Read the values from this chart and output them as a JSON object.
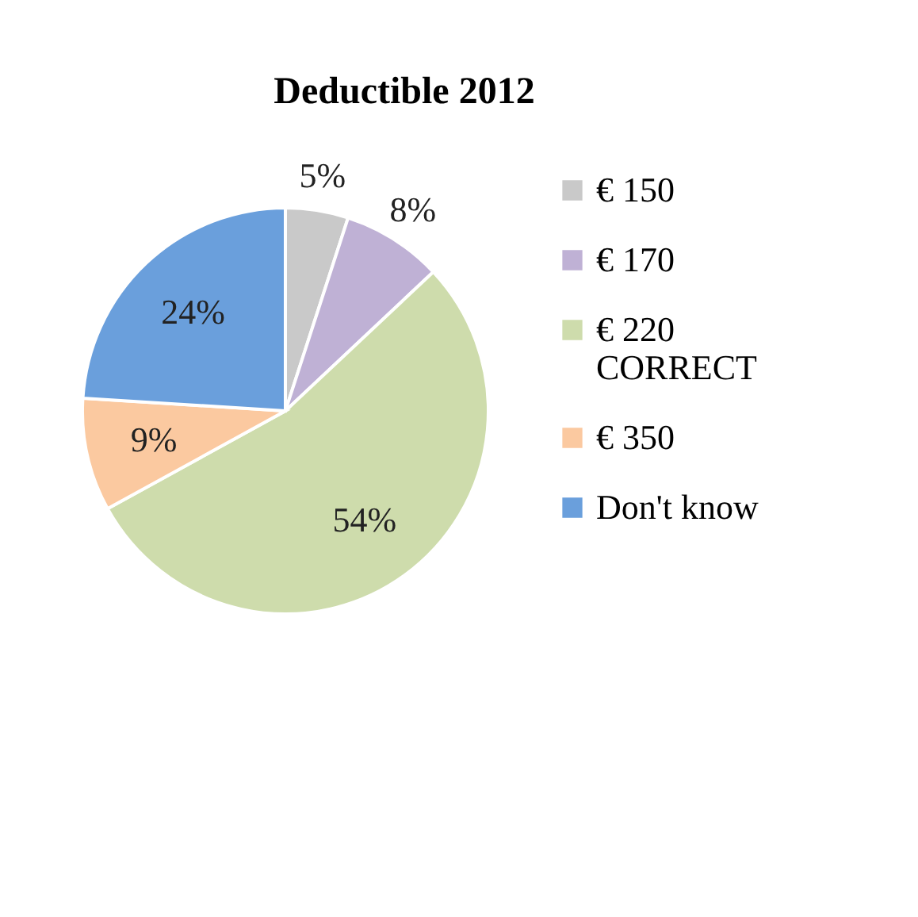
{
  "chart_data": {
    "type": "pie",
    "title": "Deductible 2012",
    "categories": [
      "€ 150",
      "€ 170",
      "€ 220 CORRECT",
      "€ 350",
      "Don't know"
    ],
    "values": [
      5,
      8,
      54,
      9,
      24
    ],
    "colors": [
      "#c9c9c9",
      "#bfb1d5",
      "#cedcac",
      "#fbc9a0",
      "#6a9fdc"
    ],
    "value_labels": [
      "5%",
      "8%",
      "54%",
      "9%",
      "24%"
    ],
    "legend": "right"
  }
}
